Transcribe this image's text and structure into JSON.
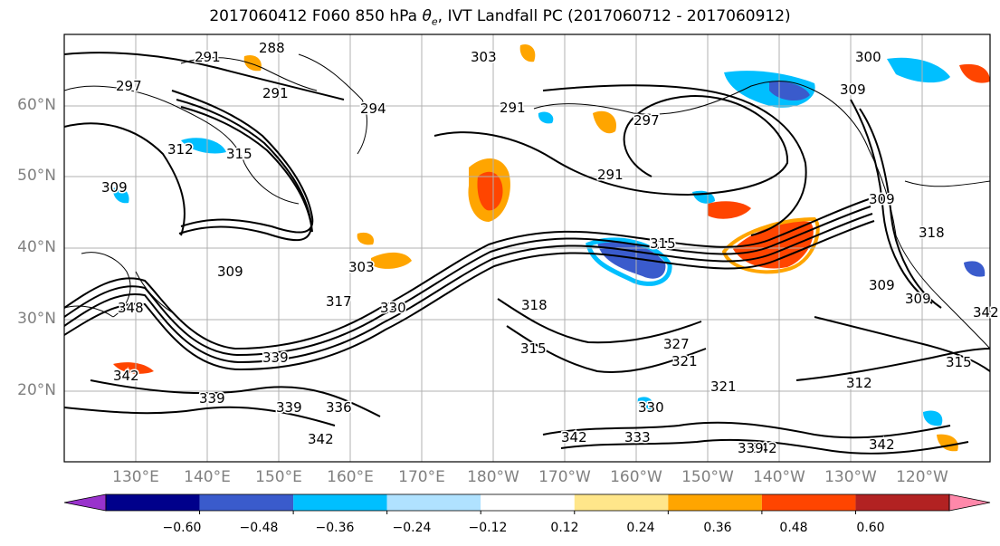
{
  "title_prefix": "2017060412 F060 850 hPa ",
  "title_theta": "θ",
  "title_theta_sub": "e",
  "title_suffix": ", IVT Landfall PC (2017060712 - 2017060912)",
  "lat_labels": [
    "60°N",
    "50°N",
    "40°N",
    "30°N",
    "20°N"
  ],
  "lon_labels": [
    "130°E",
    "140°E",
    "150°E",
    "160°E",
    "170°E",
    "180°W",
    "170°W",
    "160°W",
    "150°W",
    "140°W",
    "130°W",
    "120°W"
  ],
  "colorbar": {
    "colors": [
      "#9932CC",
      "#00008B",
      "#3A5BCC",
      "#00BFFF",
      "#B0E2FF",
      "#FFFFFF",
      "#FFE68A",
      "#FFA500",
      "#FF4500",
      "#B22222",
      "#FF88AA"
    ],
    "tick_labels": [
      "−0.60",
      "−0.48",
      "−0.36",
      "−0.24",
      "−0.12",
      "0.12",
      "0.24",
      "0.36",
      "0.48",
      "0.60"
    ]
  },
  "contour_labels": [
    "288",
    "291",
    "291",
    "294",
    "297",
    "303",
    "300",
    "309",
    "291",
    "297",
    "291",
    "309",
    "312",
    "315",
    "309",
    "315",
    "303",
    "309",
    "317",
    "330",
    "318",
    "315",
    "339",
    "342",
    "339",
    "336",
    "339",
    "342",
    "330",
    "321",
    "327",
    "321",
    "312",
    "309",
    "309",
    "318",
    "315",
    "342",
    "342",
    "342",
    "333",
    "339",
    "348",
    "342"
  ]
}
